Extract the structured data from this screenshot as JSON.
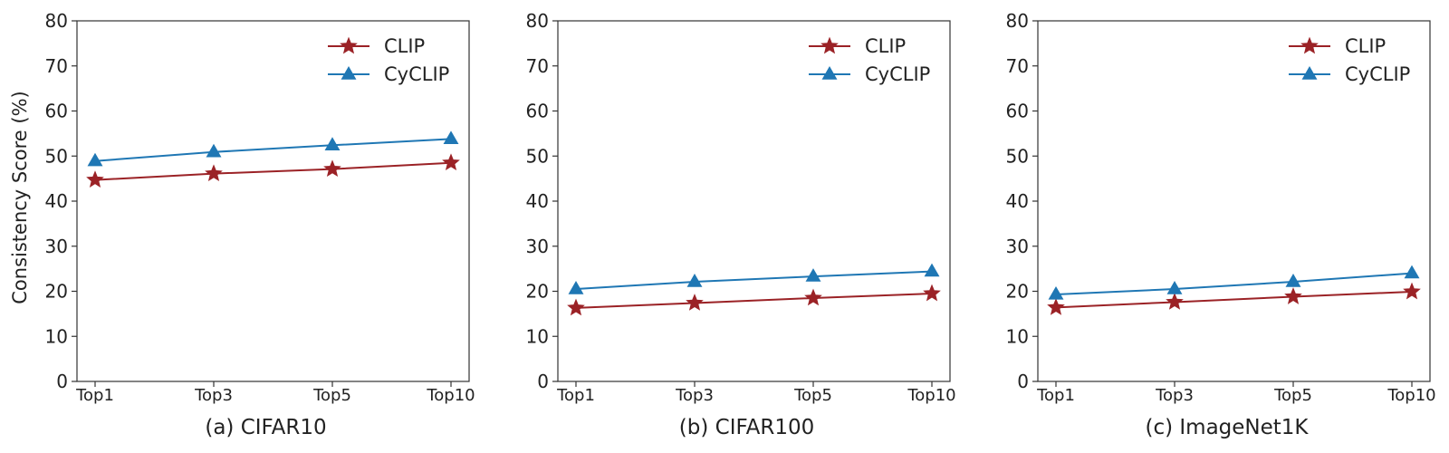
{
  "figure": {
    "ylabel": "Consistency Score (%)"
  },
  "chart_data": [
    {
      "type": "line",
      "title": "(a) CIFAR10",
      "xlabel": "",
      "ylabel": "Consistency Score (%)",
      "categories": [
        "Top1",
        "Top3",
        "Top5",
        "Top10"
      ],
      "ylim": [
        0,
        80
      ],
      "yticks": [
        0,
        10,
        20,
        30,
        40,
        50,
        60,
        70,
        80
      ],
      "grid": false,
      "legend": "top-right",
      "series": [
        {
          "name": "CLIP",
          "values": [
            44.7,
            46.1,
            47.1,
            48.5
          ],
          "color": "#9b2226",
          "marker": "star"
        },
        {
          "name": "CyCLIP",
          "values": [
            48.9,
            50.9,
            52.4,
            53.8
          ],
          "color": "#1f77b4",
          "marker": "triangle"
        }
      ]
    },
    {
      "type": "line",
      "title": "(b) CIFAR100",
      "xlabel": "",
      "ylabel": "",
      "categories": [
        "Top1",
        "Top3",
        "Top5",
        "Top10"
      ],
      "ylim": [
        0,
        80
      ],
      "yticks": [
        0,
        10,
        20,
        30,
        40,
        50,
        60,
        70,
        80
      ],
      "grid": false,
      "legend": "top-right",
      "series": [
        {
          "name": "CLIP",
          "values": [
            16.3,
            17.4,
            18.5,
            19.5
          ],
          "color": "#9b2226",
          "marker": "star"
        },
        {
          "name": "CyCLIP",
          "values": [
            20.5,
            22.1,
            23.3,
            24.4
          ],
          "color": "#1f77b4",
          "marker": "triangle"
        }
      ]
    },
    {
      "type": "line",
      "title": "(c) ImageNet1K",
      "xlabel": "",
      "ylabel": "",
      "categories": [
        "Top1",
        "Top3",
        "Top5",
        "Top10"
      ],
      "ylim": [
        0,
        80
      ],
      "yticks": [
        0,
        10,
        20,
        30,
        40,
        50,
        60,
        70,
        80
      ],
      "grid": false,
      "legend": "top-right",
      "series": [
        {
          "name": "CLIP",
          "values": [
            16.4,
            17.6,
            18.8,
            19.9
          ],
          "color": "#9b2226",
          "marker": "star"
        },
        {
          "name": "CyCLIP",
          "values": [
            19.3,
            20.5,
            22.1,
            24.0
          ],
          "color": "#1f77b4",
          "marker": "triangle"
        }
      ]
    }
  ]
}
